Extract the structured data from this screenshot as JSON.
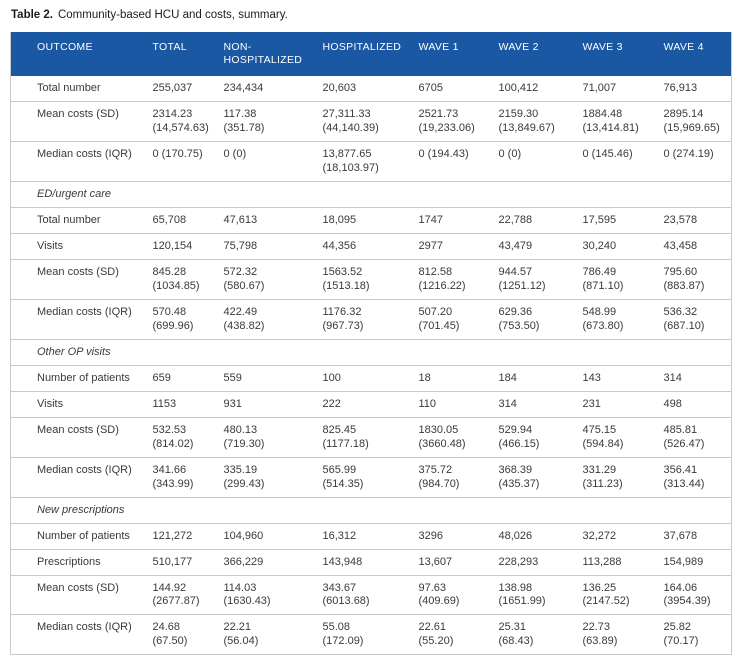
{
  "title": {
    "prefix": "Table 2.",
    "text": "Community-based HCU and costs, summary."
  },
  "colors": {
    "header_bg": "#1a58a4",
    "header_text": "#ffffff",
    "border": "#c9c9c9",
    "body_text": "#3a3a3a"
  },
  "table": {
    "columns": [
      "OUTCOME",
      "TOTAL",
      "NON-\nHOSPITALIZED",
      "HOSPITALIZED",
      "WAVE 1",
      "WAVE 2",
      "WAVE 3",
      "WAVE 4"
    ],
    "sections": [
      {
        "heading": "",
        "rows": [
          {
            "label": "Total number",
            "values": [
              "255,037",
              "234,434",
              "20,603",
              "6705",
              "100,412",
              "71,007",
              "76,913"
            ]
          },
          {
            "label": "Mean costs (SD)",
            "values": [
              "2314.23\n(14,574.63)",
              "117.38\n(351.78)",
              "27,311.33\n(44,140.39)",
              "2521.73\n(19,233.06)",
              "2159.30\n(13,849.67)",
              "1884.48\n(13,414.81)",
              "2895.14\n(15,969.65)"
            ]
          },
          {
            "label": "Median costs (IQR)",
            "values": [
              "0 (170.75)",
              "0 (0)",
              "13,877.65\n(18,103.97)",
              "0 (194.43)",
              "0 (0)",
              "0 (145.46)",
              "0 (274.19)"
            ]
          }
        ]
      },
      {
        "heading": "ED/urgent care",
        "rows": [
          {
            "label": "Total number",
            "values": [
              "65,708",
              "47,613",
              "18,095",
              "1747",
              "22,788",
              "17,595",
              "23,578"
            ]
          },
          {
            "label": "Visits",
            "values": [
              "120,154",
              "75,798",
              "44,356",
              "2977",
              "43,479",
              "30,240",
              "43,458"
            ]
          },
          {
            "label": "Mean costs (SD)",
            "values": [
              "845.28\n(1034.85)",
              "572.32\n(580.67)",
              "1563.52\n(1513.18)",
              "812.58\n(1216.22)",
              "944.57\n(1251.12)",
              "786.49\n(871.10)",
              "795.60\n(883.87)"
            ]
          },
          {
            "label": "Median costs (IQR)",
            "values": [
              "570.48\n(699.96)",
              "422.49\n(438.82)",
              "1176.32\n(967.73)",
              "507.20\n(701.45)",
              "629.36\n(753.50)",
              "548.99\n(673.80)",
              "536.32\n(687.10)"
            ]
          }
        ]
      },
      {
        "heading": "Other OP visits",
        "rows": [
          {
            "label": "Number of patients",
            "values": [
              "659",
              "559",
              "100",
              "18",
              "184",
              "143",
              "314"
            ]
          },
          {
            "label": "Visits",
            "values": [
              "1153",
              "931",
              "222",
              "110",
              "314",
              "231",
              "498"
            ]
          },
          {
            "label": "Mean costs (SD)",
            "values": [
              "532.53\n(814.02)",
              "480.13\n(719.30)",
              "825.45\n(1177.18)",
              "1830.05\n(3660.48)",
              "529.94\n(466.15)",
              "475.15\n(594.84)",
              "485.81\n(526.47)"
            ]
          },
          {
            "label": "Median costs (IQR)",
            "values": [
              "341.66\n(343.99)",
              "335.19\n(299.43)",
              "565.99\n(514.35)",
              "375.72\n(984.70)",
              "368.39\n(435.37)",
              "331.29\n(311.23)",
              "356.41\n(313.44)"
            ]
          }
        ]
      },
      {
        "heading": "New prescriptions",
        "rows": [
          {
            "label": "Number of patients",
            "values": [
              "121,272",
              "104,960",
              "16,312",
              "3296",
              "48,026",
              "32,272",
              "37,678"
            ]
          },
          {
            "label": "Prescriptions",
            "values": [
              "510,177",
              "366,229",
              "143,948",
              "13,607",
              "228,293",
              "113,288",
              "154,989"
            ]
          },
          {
            "label": "Mean costs (SD)",
            "values": [
              "144.92\n(2677.87)",
              "114.03\n(1630.43)",
              "343.67\n(6013.68)",
              "97.63\n(409.69)",
              "138.98\n(1651.99)",
              "136.25\n(2147.52)",
              "164.06\n(3954.39)"
            ]
          },
          {
            "label": "Median costs (IQR)",
            "values": [
              "24.68\n(67.50)",
              "22.21\n(56.04)",
              "55.08\n(172.09)",
              "22.61\n(55.20)",
              "25.31\n(68.43)",
              "22.73\n(63.89)",
              "25.82\n(70.17)"
            ]
          }
        ]
      }
    ]
  }
}
